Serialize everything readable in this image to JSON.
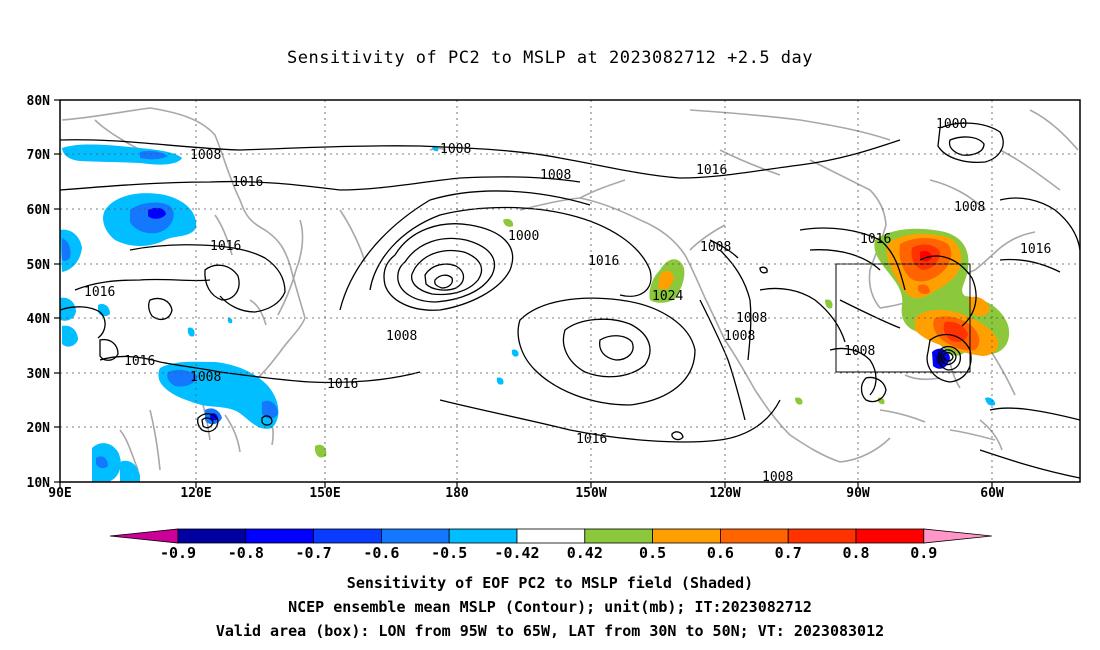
{
  "title": "Sensitivity of PC2 to MSLP at 2023082712 +2.5 day",
  "map": {
    "lat_labels": [
      "80N",
      "70N",
      "60N",
      "50N",
      "40N",
      "30N",
      "20N",
      "10N"
    ],
    "lon_labels": [
      "90E",
      "120E",
      "150E",
      "180",
      "150W",
      "120W",
      "90W",
      "60W"
    ],
    "contour_labels": [
      "1008",
      "1008",
      "1016",
      "1008",
      "1016",
      "1016",
      "1000",
      "1016",
      "1024",
      "1008",
      "1008",
      "1008",
      "1016",
      "1016",
      "1016",
      "1016",
      "1008",
      "1008",
      "1016",
      "1008",
      "1000",
      "1008",
      "1016",
      "1008"
    ],
    "valid_box": {
      "lon_from": "95W",
      "lon_to": "65W",
      "lat_from": "30N",
      "lat_to": "50N"
    }
  },
  "colorbar": {
    "labels": [
      "-0.9",
      "-0.8",
      "-0.7",
      "-0.6",
      "-0.5",
      "-0.42",
      "0.42",
      "0.5",
      "0.6",
      "0.7",
      "0.8",
      "0.9"
    ],
    "colors": [
      "#cc0099",
      "#0000a0",
      "#0000ff",
      "#0a3cff",
      "#1478ff",
      "#00beff",
      "#ffffff",
      "#8cc83c",
      "#ffa000",
      "#ff6400",
      "#ff3200",
      "#ff0000",
      "#ff96c8"
    ]
  },
  "captions": {
    "line1": "Sensitivity of EOF PC2 to MSLP field (Shaded)",
    "line2": "NCEP ensemble mean MSLP (Contour); unit(mb); IT:2023082712",
    "line3": "Valid area (box): LON from 95W to 65W, LAT from 30N to 50N; VT: 2023083012"
  }
}
